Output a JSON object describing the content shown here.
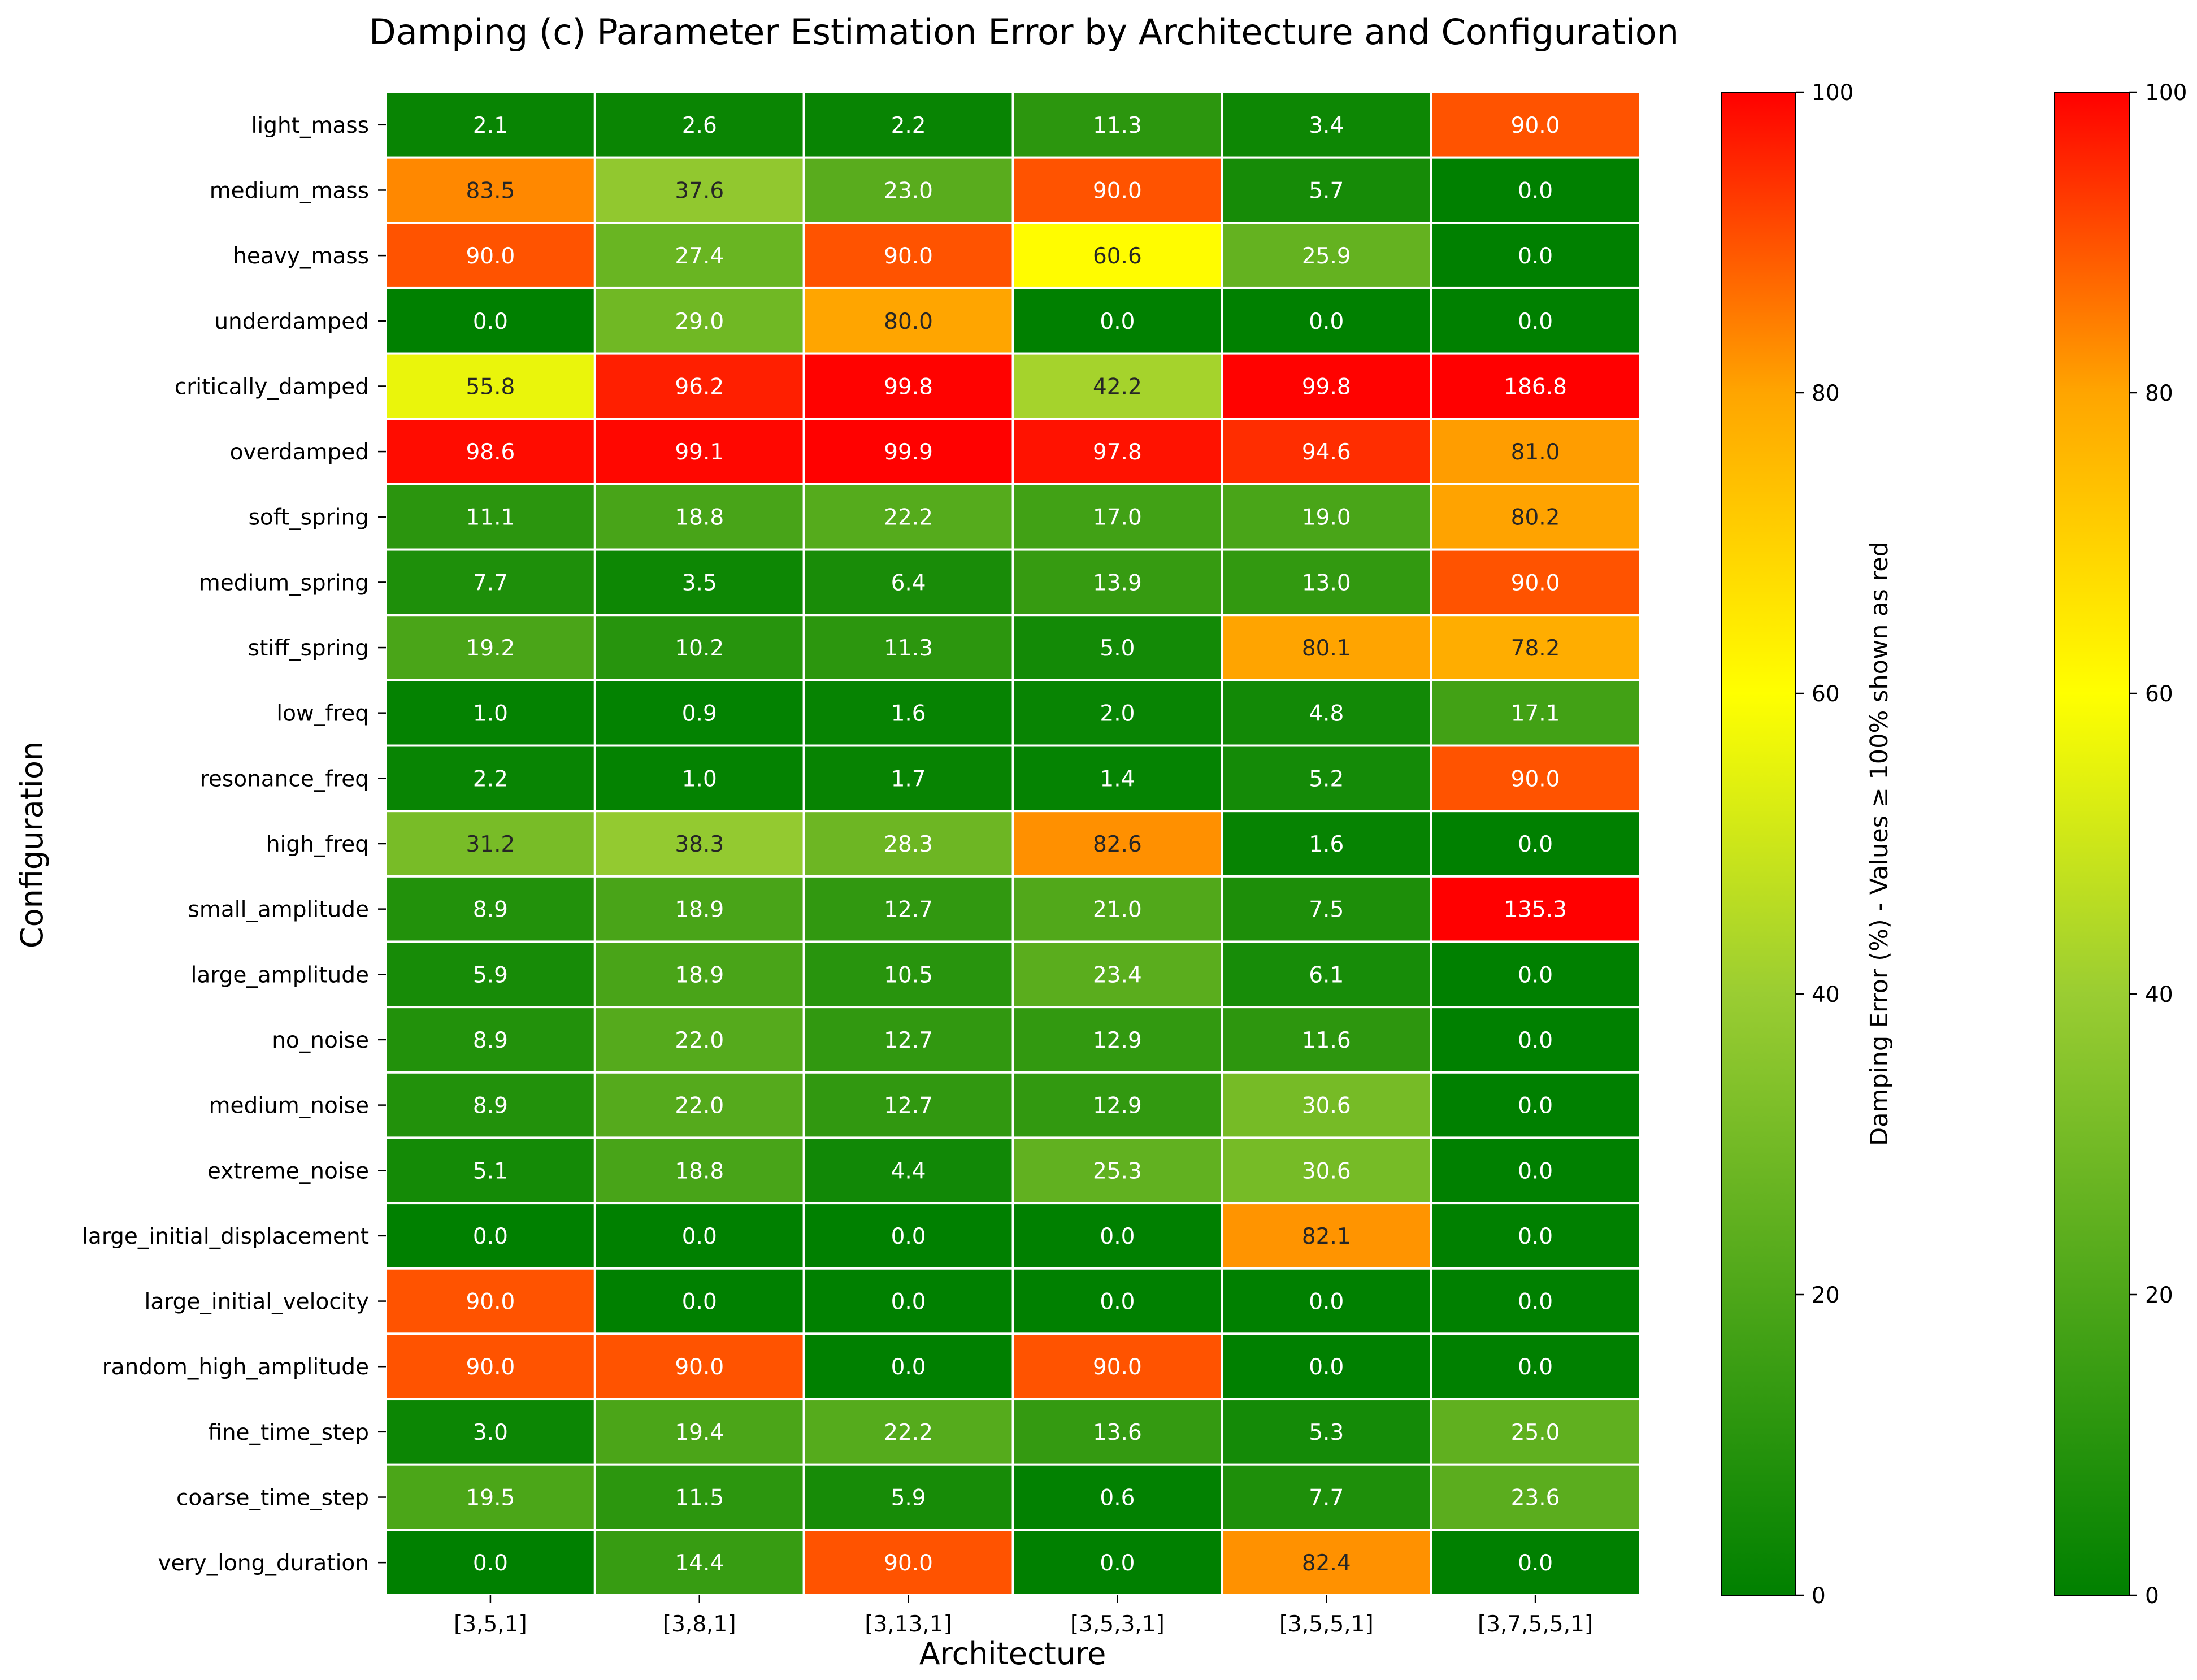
{
  "chart_data": {
    "type": "heatmap",
    "title": "Damping (c) Parameter Estimation Error by Architecture and Configuration",
    "xlabel": "Architecture",
    "ylabel": "Configuration",
    "x_categories": [
      "[3,5,1]",
      "[3,8,1]",
      "[3,13,1]",
      "[3,5,3,1]",
      "[3,5,5,1]",
      "[3,7,5,5,1]"
    ],
    "y_categories": [
      "light_mass",
      "medium_mass",
      "heavy_mass",
      "underdamped",
      "critically_damped",
      "overdamped",
      "soft_spring",
      "medium_spring",
      "stiff_spring",
      "low_freq",
      "resonance_freq",
      "high_freq",
      "small_amplitude",
      "large_amplitude",
      "no_noise",
      "medium_noise",
      "extreme_noise",
      "large_initial_displacement",
      "large_initial_velocity",
      "random_high_amplitude",
      "fine_time_step",
      "coarse_time_step",
      "very_long_duration"
    ],
    "values": [
      [
        2.1,
        2.6,
        2.2,
        11.3,
        3.4,
        90.0
      ],
      [
        83.5,
        37.6,
        23.0,
        90.0,
        5.7,
        0.0
      ],
      [
        90.0,
        27.4,
        90.0,
        60.6,
        25.9,
        0.0
      ],
      [
        0.0,
        29.0,
        80.0,
        0.0,
        0.0,
        0.0
      ],
      [
        55.8,
        96.2,
        99.8,
        42.2,
        99.8,
        186.8
      ],
      [
        98.6,
        99.1,
        99.9,
        97.8,
        94.6,
        81.0
      ],
      [
        11.1,
        18.8,
        22.2,
        17.0,
        19.0,
        80.2
      ],
      [
        7.7,
        3.5,
        6.4,
        13.9,
        13.0,
        90.0
      ],
      [
        19.2,
        10.2,
        11.3,
        5.0,
        80.1,
        78.2
      ],
      [
        1.0,
        0.9,
        1.6,
        2.0,
        4.8,
        17.1
      ],
      [
        2.2,
        1.0,
        1.7,
        1.4,
        5.2,
        90.0
      ],
      [
        31.2,
        38.3,
        28.3,
        82.6,
        1.6,
        0.0
      ],
      [
        8.9,
        18.9,
        12.7,
        21.0,
        7.5,
        135.3
      ],
      [
        5.9,
        18.9,
        10.5,
        23.4,
        6.1,
        0.0
      ],
      [
        8.9,
        22.0,
        12.7,
        12.9,
        11.6,
        0.0
      ],
      [
        8.9,
        22.0,
        12.7,
        12.9,
        30.6,
        0.0
      ],
      [
        5.1,
        18.8,
        4.4,
        25.3,
        30.6,
        0.0
      ],
      [
        0.0,
        0.0,
        0.0,
        0.0,
        82.1,
        0.0
      ],
      [
        90.0,
        0.0,
        0.0,
        0.0,
        0.0,
        0.0
      ],
      [
        90.0,
        90.0,
        0.0,
        90.0,
        0.0,
        0.0
      ],
      [
        3.0,
        19.4,
        22.2,
        13.6,
        5.3,
        25.0
      ],
      [
        19.5,
        11.5,
        5.9,
        0.6,
        7.7,
        23.6
      ],
      [
        0.0,
        14.4,
        90.0,
        0.0,
        82.4,
        0.0
      ]
    ],
    "colorscale": {
      "vmin": 0,
      "vmax": 100,
      "stops": [
        {
          "value": 0,
          "color": "#008000"
        },
        {
          "value": 40,
          "color": "#9acd32"
        },
        {
          "value": 60,
          "color": "#ffff00"
        },
        {
          "value": 80,
          "color": "#ffa500"
        },
        {
          "value": 100,
          "color": "#ff0000"
        }
      ]
    },
    "colorbars": [
      {
        "label": "Damping Error (%) - Values ≥ 100% shown as red",
        "ticks": [
          "0",
          "20",
          "40",
          "60",
          "80",
          "100"
        ]
      },
      {
        "label": "",
        "ticks": [
          "0",
          "20",
          "40",
          "60",
          "80",
          "100"
        ]
      }
    ],
    "grid": false
  }
}
